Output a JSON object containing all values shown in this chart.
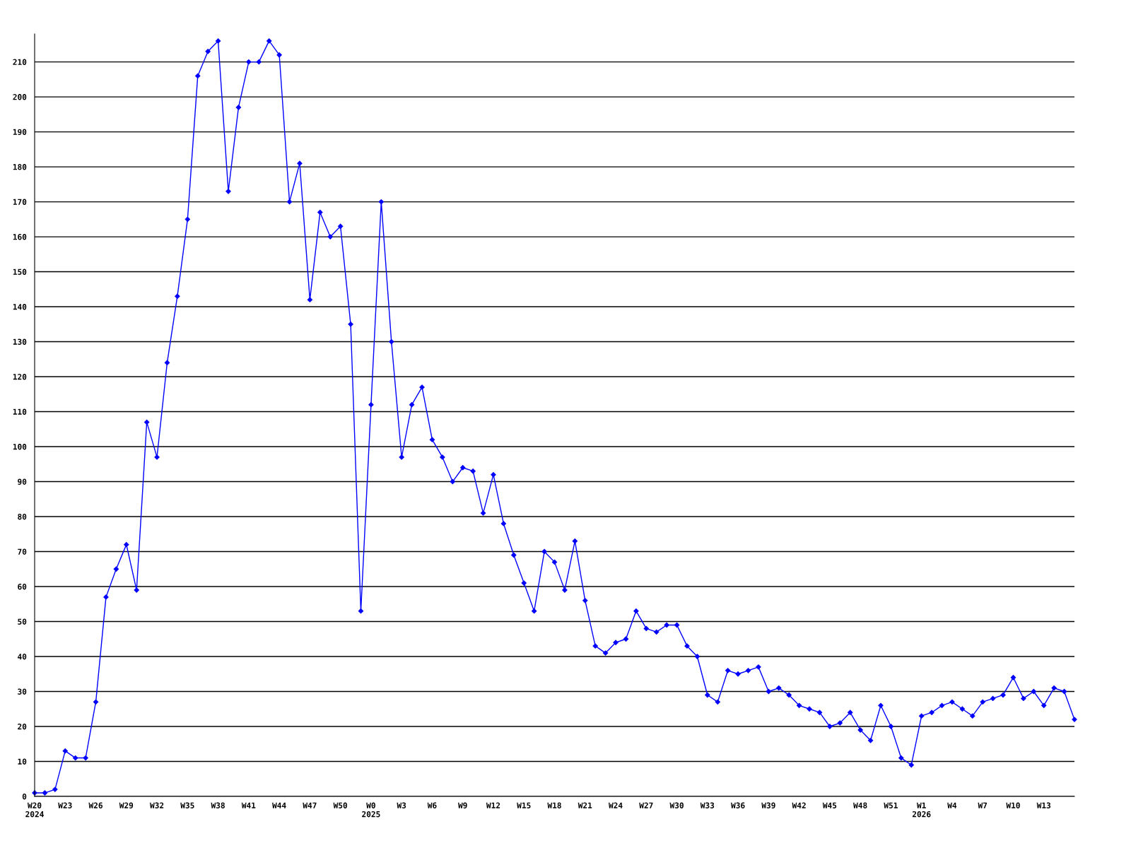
{
  "chart_data": {
    "type": "line",
    "categories": [
      "W20\n2024",
      null,
      null,
      "W23",
      null,
      null,
      "W26",
      null,
      null,
      "W29",
      null,
      null,
      "W32",
      null,
      null,
      "W35",
      null,
      null,
      "W38",
      null,
      null,
      "W41",
      null,
      null,
      "W44",
      null,
      null,
      "W47",
      null,
      null,
      "W50",
      null,
      null,
      "W0\n2025",
      null,
      null,
      "W3",
      null,
      null,
      "W6",
      null,
      null,
      "W9",
      null,
      null,
      "W12",
      null,
      null,
      "W15",
      null,
      null,
      "W18",
      null,
      null,
      "W21",
      null,
      null,
      "W24",
      null,
      null,
      "W27",
      null,
      null,
      "W30",
      null,
      null,
      "W33",
      null,
      null,
      "W36",
      null,
      null,
      "W39",
      null,
      null,
      "W42",
      null,
      null,
      "W45",
      null,
      null,
      "W48",
      null,
      null,
      "W51",
      null,
      null,
      "W1\n2026",
      null,
      null,
      "W4",
      null,
      null,
      "W7",
      null,
      null,
      "W10",
      null,
      null,
      "W13",
      null,
      null,
      null
    ],
    "series": [
      {
        "color": "#0000ff",
        "values": [
          1,
          1,
          2,
          13,
          11,
          11,
          27,
          57,
          65,
          72,
          59,
          107,
          97,
          124,
          143,
          165,
          206,
          213,
          216,
          173,
          197,
          210,
          210,
          216,
          212,
          170,
          181,
          142,
          167,
          160,
          163,
          135,
          53,
          112,
          170,
          130,
          97,
          112,
          117,
          102,
          97,
          90,
          94,
          93,
          81,
          92,
          78,
          69,
          61,
          53,
          70,
          67,
          59,
          73,
          56,
          43,
          41,
          44,
          45,
          53,
          48,
          47,
          49,
          49,
          43,
          40,
          29,
          27,
          36,
          35,
          36,
          37,
          30,
          31,
          29,
          26,
          25,
          24,
          20,
          21,
          24,
          19,
          16,
          26,
          20,
          11,
          9,
          23,
          24,
          26,
          27,
          25,
          23,
          27,
          28,
          29,
          34,
          28,
          30,
          26,
          31,
          30,
          22
        ]
      }
    ],
    "ylim": [
      0,
      218
    ],
    "yticks": [
      0,
      10,
      20,
      30,
      40,
      50,
      60,
      70,
      80,
      90,
      100,
      110,
      120,
      130,
      140,
      150,
      160,
      170,
      180,
      190,
      200,
      210
    ],
    "grid": "y",
    "marker": "diamond",
    "line_style": "solid"
  }
}
